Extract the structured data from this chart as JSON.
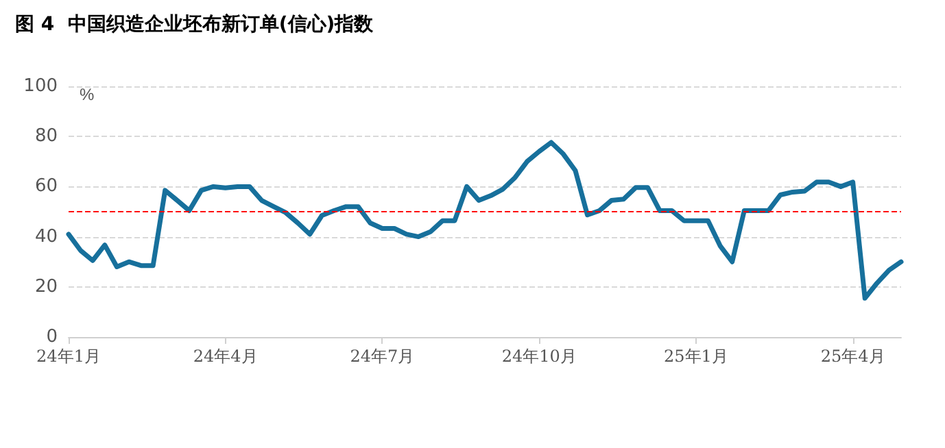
{
  "chart_data": {
    "type": "line",
    "title": "图 4  中国织造企业坯布新订单(信心)指数",
    "ylabel": "%",
    "categories": [
      "24年1月",
      null,
      null,
      null,
      null,
      null,
      null,
      null,
      null,
      null,
      null,
      null,
      null,
      "24年4月",
      null,
      null,
      null,
      null,
      null,
      null,
      null,
      null,
      null,
      null,
      null,
      null,
      "24年7月",
      null,
      null,
      null,
      null,
      null,
      null,
      null,
      null,
      null,
      null,
      null,
      null,
      "24年10月",
      null,
      null,
      null,
      null,
      null,
      null,
      null,
      null,
      null,
      null,
      null,
      null,
      "25年1月",
      null,
      null,
      null,
      null,
      null,
      null,
      null,
      null,
      null,
      null,
      null,
      null,
      "25年4月",
      null,
      null,
      null,
      null
    ],
    "series": [
      {
        "color": "#17709c",
        "values": [
          41,
          34.5,
          30.5,
          36.7,
          28,
          30,
          28.5,
          28.5,
          58.5,
          54.5,
          50.4,
          58.5,
          60,
          59.5,
          60,
          60,
          54.5,
          52,
          49.6,
          45.5,
          41,
          48.5,
          50.4,
          52,
          52,
          45.5,
          43.3,
          43.3,
          41,
          40,
          42,
          46.4,
          46.4,
          60,
          54.5,
          56.4,
          59,
          63.6,
          70,
          74,
          77.6,
          73,
          66.4,
          48.7,
          50.4,
          54.5,
          55,
          59.6,
          59.6,
          50.4,
          50.4,
          46.4,
          46.4,
          46.4,
          36.4,
          30,
          50.4,
          50.4,
          50.4,
          56.7,
          57.8,
          58.2,
          61.8,
          61.8,
          60,
          61.8,
          15.5,
          21.5,
          26.7,
          30
        ]
      }
    ],
    "ylim": [
      0,
      100
    ],
    "yticks": [
      0,
      20,
      40,
      60,
      80,
      100
    ],
    "grid": "y",
    "marker": "none",
    "line_style": "solid",
    "ref_lines": [
      {
        "axis": "y",
        "value": 50,
        "color": "#ff0000",
        "line_style": "dashed"
      }
    ]
  }
}
